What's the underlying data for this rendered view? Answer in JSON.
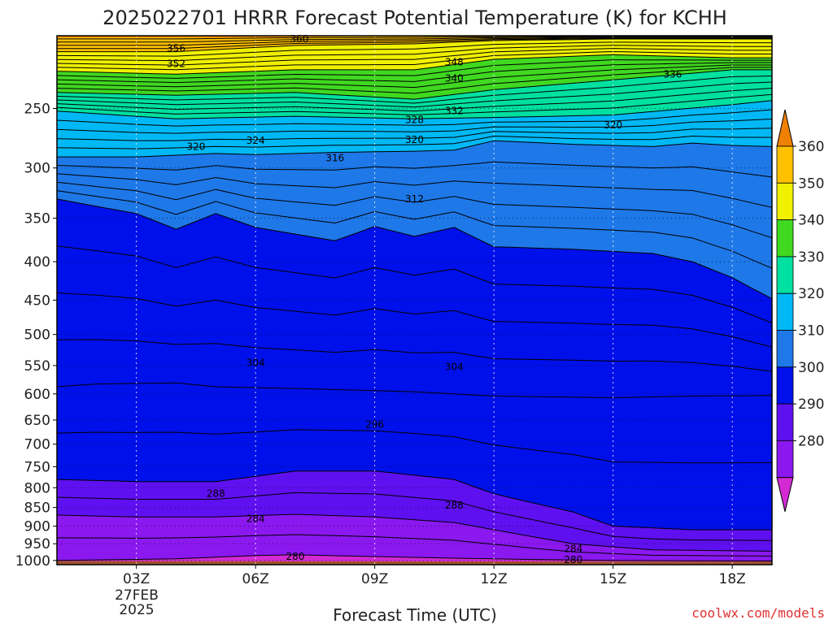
{
  "chart_data": {
    "type": "contour",
    "title": "2025022701 HRRR Forecast Potential Temperature (K) for KCHH",
    "xlabel": "Forecast Time (UTC)",
    "ylabel": "",
    "x_ticks": [
      {
        "label": "03Z",
        "hour": 3
      },
      {
        "label": "06Z",
        "hour": 6
      },
      {
        "label": "09Z",
        "hour": 9
      },
      {
        "label": "12Z",
        "hour": 12
      },
      {
        "label": "15Z",
        "hour": 15
      },
      {
        "label": "18Z",
        "hour": 18
      }
    ],
    "x_date_label": [
      "27FEB",
      "2025"
    ],
    "x_range_hours": [
      1.0,
      19.0
    ],
    "y_ticks_hpa": [
      250,
      300,
      350,
      400,
      450,
      500,
      550,
      600,
      650,
      700,
      750,
      800,
      850,
      900,
      950,
      1000
    ],
    "y_range_hpa": [
      200,
      1013
    ],
    "y_scale": "log-pressure (inverted)",
    "grid": "dotted",
    "colorbar": {
      "levels": [
        280,
        290,
        300,
        310,
        320,
        330,
        340,
        350,
        360
      ],
      "labels": [
        "280",
        "290",
        "300",
        "310",
        "320",
        "330",
        "340",
        "350",
        "360"
      ],
      "colors": [
        "#d42ad4",
        "#8a18ef",
        "#5f10f0",
        "#0010ea",
        "#1e78e8",
        "#00b8f5",
        "#00e0a0",
        "#40d820",
        "#f0f000",
        "#ffc000",
        "#f08000"
      ]
    },
    "contour_labels": [
      {
        "text": "356",
        "hour": 4.0,
        "hpa": 208
      },
      {
        "text": "352",
        "hour": 4.0,
        "hpa": 218
      },
      {
        "text": "360",
        "hour": 7.1,
        "hpa": 202
      },
      {
        "text": "348",
        "hour": 11.0,
        "hpa": 217
      },
      {
        "text": "340",
        "hour": 11.0,
        "hpa": 228
      },
      {
        "text": "332",
        "hour": 11.0,
        "hpa": 252
      },
      {
        "text": "328",
        "hour": 10.0,
        "hpa": 259
      },
      {
        "text": "336",
        "hour": 16.5,
        "hpa": 225
      },
      {
        "text": "320",
        "hour": 4.5,
        "hpa": 281
      },
      {
        "text": "324",
        "hour": 6.0,
        "hpa": 276
      },
      {
        "text": "320",
        "hour": 10.0,
        "hpa": 275
      },
      {
        "text": "320",
        "hour": 15.0,
        "hpa": 263
      },
      {
        "text": "316",
        "hour": 8.0,
        "hpa": 291
      },
      {
        "text": "312",
        "hour": 10.0,
        "hpa": 330
      },
      {
        "text": "304",
        "hour": 6.0,
        "hpa": 545
      },
      {
        "text": "304",
        "hour": 11.0,
        "hpa": 552
      },
      {
        "text": "296",
        "hour": 9.0,
        "hpa": 659
      },
      {
        "text": "288",
        "hour": 5.0,
        "hpa": 815
      },
      {
        "text": "288",
        "hour": 11.0,
        "hpa": 845
      },
      {
        "text": "284",
        "hour": 6.0,
        "hpa": 880
      },
      {
        "text": "284",
        "hour": 14.0,
        "hpa": 965
      },
      {
        "text": "280",
        "hour": 7.0,
        "hpa": 988
      },
      {
        "text": "280",
        "hour": 14.0,
        "hpa": 998
      }
    ],
    "layers": [
      {
        "theta": 292,
        "color": "#0010ea",
        "hpa": [
          [
            1,
            587
          ],
          [
            2,
            582
          ],
          [
            4,
            580
          ],
          [
            5,
            587
          ],
          [
            7,
            590
          ],
          [
            10,
            596
          ],
          [
            12,
            604
          ],
          [
            15,
            607
          ],
          [
            17,
            604
          ],
          [
            19,
            603
          ]
        ]
      },
      {
        "theta": 300,
        "color": "#1e78e8",
        "hpa": [
          [
            1,
            330
          ],
          [
            3,
            345
          ],
          [
            4,
            362
          ],
          [
            5,
            345
          ],
          [
            6,
            360
          ],
          [
            8,
            375
          ],
          [
            9,
            359
          ],
          [
            10,
            370
          ],
          [
            11,
            360
          ],
          [
            12,
            382
          ],
          [
            14,
            385
          ],
          [
            16,
            390
          ],
          [
            17,
            400
          ],
          [
            18,
            420
          ],
          [
            19,
            448
          ]
        ]
      },
      {
        "theta": 310,
        "color": "#00b8f5",
        "hpa": [
          [
            1,
            290
          ],
          [
            3,
            290
          ],
          [
            5,
            287
          ],
          [
            6,
            288
          ],
          [
            8,
            286
          ],
          [
            10,
            285
          ],
          [
            11,
            284
          ],
          [
            12,
            276
          ],
          [
            14,
            279
          ],
          [
            16,
            281
          ],
          [
            17,
            278
          ],
          [
            18,
            280
          ],
          [
            19,
            281
          ]
        ]
      },
      {
        "theta": 320,
        "color": "#00e0a0",
        "hpa": [
          [
            1,
            252
          ],
          [
            4,
            258
          ],
          [
            7,
            256
          ],
          [
            10,
            258
          ],
          [
            12,
            257
          ],
          [
            15,
            255
          ],
          [
            18,
            247
          ],
          [
            19,
            244
          ]
        ]
      },
      {
        "theta": 330,
        "color": "#40d820",
        "hpa": [
          [
            1,
            238
          ],
          [
            4,
            240
          ],
          [
            7,
            238
          ],
          [
            10,
            243
          ],
          [
            12,
            236
          ],
          [
            15,
            229
          ],
          [
            18,
            222
          ],
          [
            19,
            222
          ]
        ]
      },
      {
        "theta": 340,
        "color": "#f0f000",
        "hpa": [
          [
            1,
            223
          ],
          [
            4,
            225
          ],
          [
            7,
            222
          ],
          [
            10,
            222
          ],
          [
            12,
            215
          ],
          [
            15,
            212
          ],
          [
            18,
            214
          ],
          [
            19,
            214
          ]
        ]
      },
      {
        "theta": 350,
        "color": "#ffc000",
        "hpa": [
          [
            1,
            210
          ],
          [
            4,
            210
          ],
          [
            7,
            206
          ],
          [
            10,
            205
          ],
          [
            12,
            203
          ],
          [
            15,
            202
          ],
          [
            18,
            202
          ],
          [
            19,
            202
          ]
        ]
      },
      {
        "theta": 358,
        "color": "#f08000",
        "hpa": [
          [
            1,
            201
          ],
          [
            6,
            201
          ],
          [
            9,
            200
          ],
          [
            12,
            200
          ],
          [
            19,
            200
          ]
        ]
      }
    ],
    "lower_layers": [
      {
        "theta": 289,
        "color": "#5f10f0",
        "hpa": [
          [
            1,
            780
          ],
          [
            3,
            785
          ],
          [
            5,
            785
          ],
          [
            7,
            760
          ],
          [
            9,
            760
          ],
          [
            11,
            780
          ],
          [
            12,
            815
          ],
          [
            14,
            862
          ],
          [
            15,
            900
          ],
          [
            17,
            910
          ],
          [
            19,
            910
          ]
        ]
      },
      {
        "theta": 285,
        "color": "#8a18ef",
        "hpa": [
          [
            1,
            870
          ],
          [
            3,
            875
          ],
          [
            5,
            875
          ],
          [
            7,
            868
          ],
          [
            9,
            875
          ],
          [
            11,
            890
          ],
          [
            12,
            910
          ],
          [
            14,
            950
          ],
          [
            16,
            968
          ],
          [
            19,
            972
          ]
        ]
      },
      {
        "theta": 281,
        "color": "#d42ad4",
        "hpa": [
          [
            1,
            1000
          ],
          [
            4,
            995
          ],
          [
            6,
            985
          ],
          [
            7,
            983
          ],
          [
            9,
            988
          ],
          [
            11,
            993
          ],
          [
            13,
            997
          ],
          [
            15,
            1000
          ],
          [
            19,
            1002
          ]
        ]
      }
    ],
    "surface": {
      "color": "#a0522d",
      "hpa": [
        [
          1,
          1002
        ],
        [
          19,
          1004
        ]
      ]
    }
  },
  "credit": "coolwx.com/models"
}
